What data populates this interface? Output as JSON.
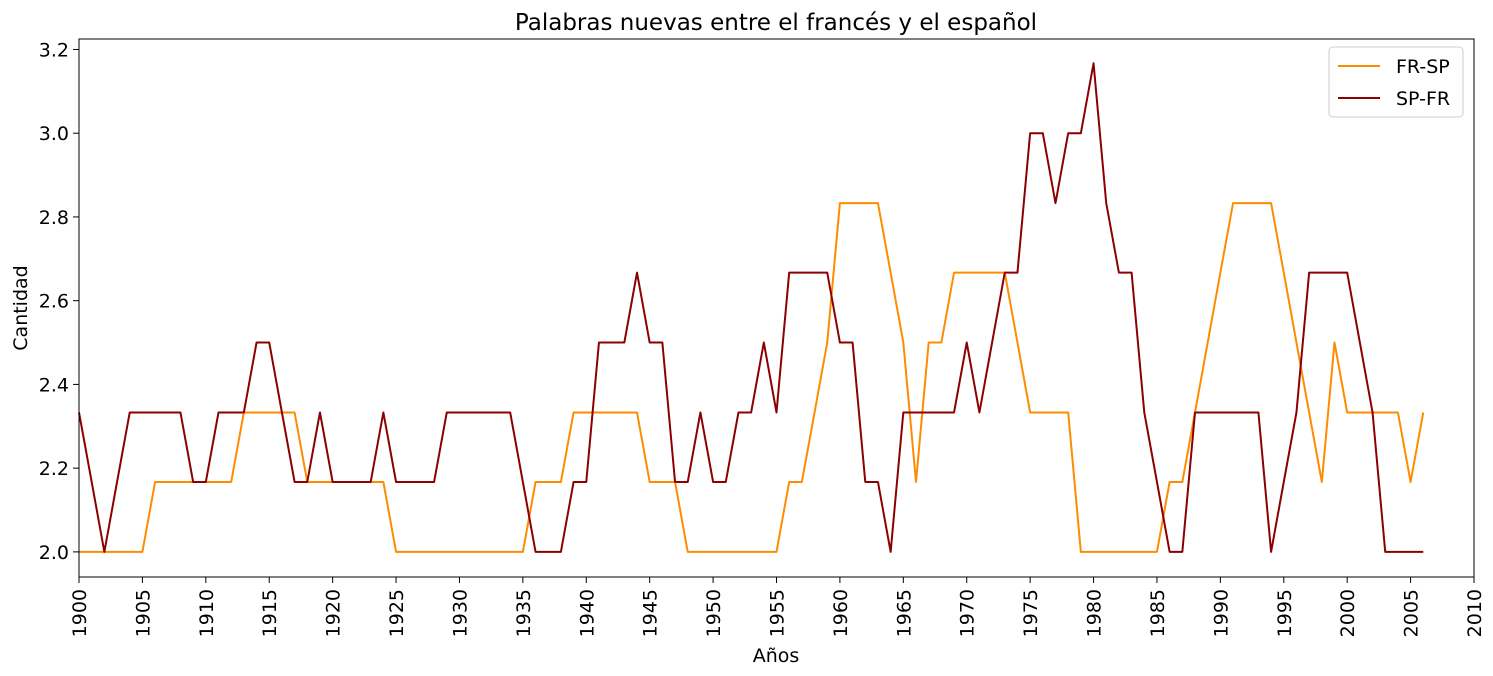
{
  "chart_data": {
    "type": "line",
    "title": "Palabras nuevas entre el francés y el español",
    "xlabel": "Años",
    "ylabel": "Cantidad",
    "xlim": [
      1900,
      2010
    ],
    "ylim": [
      1.94,
      3.225
    ],
    "xticks": [
      "1900",
      "1905",
      "1910",
      "1915",
      "1920",
      "1925",
      "1930",
      "1935",
      "1940",
      "1945",
      "1950",
      "1955",
      "1960",
      "1965",
      "1970",
      "1975",
      "1980",
      "1985",
      "1990",
      "1995",
      "2000",
      "2005",
      "2010"
    ],
    "yticks": [
      "2.0",
      "2.2",
      "2.4",
      "2.6",
      "2.8",
      "3.0",
      "3.2"
    ],
    "grid": false,
    "legend": "top-right",
    "x": [
      1900,
      1901,
      1902,
      1903,
      1904,
      1905,
      1906,
      1907,
      1908,
      1909,
      1910,
      1911,
      1912,
      1913,
      1914,
      1915,
      1916,
      1917,
      1918,
      1919,
      1920,
      1921,
      1922,
      1923,
      1924,
      1925,
      1926,
      1927,
      1928,
      1929,
      1930,
      1931,
      1932,
      1933,
      1934,
      1935,
      1936,
      1937,
      1938,
      1939,
      1940,
      1941,
      1942,
      1943,
      1944,
      1945,
      1946,
      1947,
      1948,
      1949,
      1950,
      1951,
      1952,
      1953,
      1954,
      1955,
      1956,
      1957,
      1958,
      1959,
      1960,
      1961,
      1962,
      1963,
      1964,
      1965,
      1966,
      1967,
      1968,
      1969,
      1970,
      1971,
      1972,
      1973,
      1974,
      1975,
      1976,
      1977,
      1978,
      1979,
      1980,
      1981,
      1982,
      1983,
      1984,
      1985,
      1986,
      1987,
      1988,
      1989,
      1990,
      1991,
      1992,
      1993,
      1994,
      1995,
      1996,
      1997,
      1998,
      1999,
      2000,
      2001,
      2002,
      2003,
      2004,
      2005,
      2006
    ],
    "series": [
      {
        "name": "FR-SP",
        "color": "#ff8c00",
        "values": [
          2.0,
          2.0,
          2.0,
          2.0,
          2.0,
          2.0,
          2.167,
          2.167,
          2.167,
          2.167,
          2.167,
          2.167,
          2.167,
          2.333,
          2.333,
          2.333,
          2.333,
          2.333,
          2.167,
          2.167,
          2.167,
          2.167,
          2.167,
          2.167,
          2.167,
          2.0,
          2.0,
          2.0,
          2.0,
          2.0,
          2.0,
          2.0,
          2.0,
          2.0,
          2.0,
          2.0,
          2.167,
          2.167,
          2.167,
          2.333,
          2.333,
          2.333,
          2.333,
          2.333,
          2.333,
          2.167,
          2.167,
          2.167,
          2.0,
          2.0,
          2.0,
          2.0,
          2.0,
          2.0,
          2.0,
          2.0,
          2.167,
          2.167,
          2.333,
          2.5,
          2.833,
          2.833,
          2.833,
          2.833,
          2.667,
          2.5,
          2.167,
          2.5,
          2.5,
          2.667,
          2.667,
          2.667,
          2.667,
          2.667,
          2.5,
          2.333,
          2.333,
          2.333,
          2.333,
          2.0,
          2.0,
          2.0,
          2.0,
          2.0,
          2.0,
          2.0,
          2.167,
          2.167,
          2.333,
          2.5,
          2.667,
          2.833,
          2.833,
          2.833,
          2.833,
          2.667,
          2.5,
          2.333,
          2.167,
          2.5,
          2.333,
          2.333,
          2.333,
          2.333,
          2.333,
          2.167,
          2.333
        ]
      },
      {
        "name": "SP-FR",
        "color": "#8b0000",
        "values": [
          2.333,
          2.167,
          2.0,
          2.167,
          2.333,
          2.333,
          2.333,
          2.333,
          2.333,
          2.167,
          2.167,
          2.333,
          2.333,
          2.333,
          2.5,
          2.5,
          2.333,
          2.167,
          2.167,
          2.333,
          2.167,
          2.167,
          2.167,
          2.167,
          2.333,
          2.167,
          2.167,
          2.167,
          2.167,
          2.333,
          2.333,
          2.333,
          2.333,
          2.333,
          2.333,
          2.167,
          2.0,
          2.0,
          2.0,
          2.167,
          2.167,
          2.5,
          2.5,
          2.5,
          2.667,
          2.5,
          2.5,
          2.167,
          2.167,
          2.333,
          2.167,
          2.167,
          2.333,
          2.333,
          2.5,
          2.333,
          2.667,
          2.667,
          2.667,
          2.667,
          2.5,
          2.5,
          2.167,
          2.167,
          2.0,
          2.333,
          2.333,
          2.333,
          2.333,
          2.333,
          2.5,
          2.333,
          2.5,
          2.667,
          2.667,
          3.0,
          3.0,
          2.833,
          3.0,
          3.0,
          3.167,
          2.833,
          2.667,
          2.667,
          2.333,
          2.167,
          2.0,
          2.0,
          2.333,
          2.333,
          2.333,
          2.333,
          2.333,
          2.333,
          2.0,
          2.167,
          2.333,
          2.667,
          2.667,
          2.667,
          2.667,
          2.5,
          2.333,
          2.0,
          2.0,
          2.0,
          2.0
        ]
      }
    ]
  }
}
